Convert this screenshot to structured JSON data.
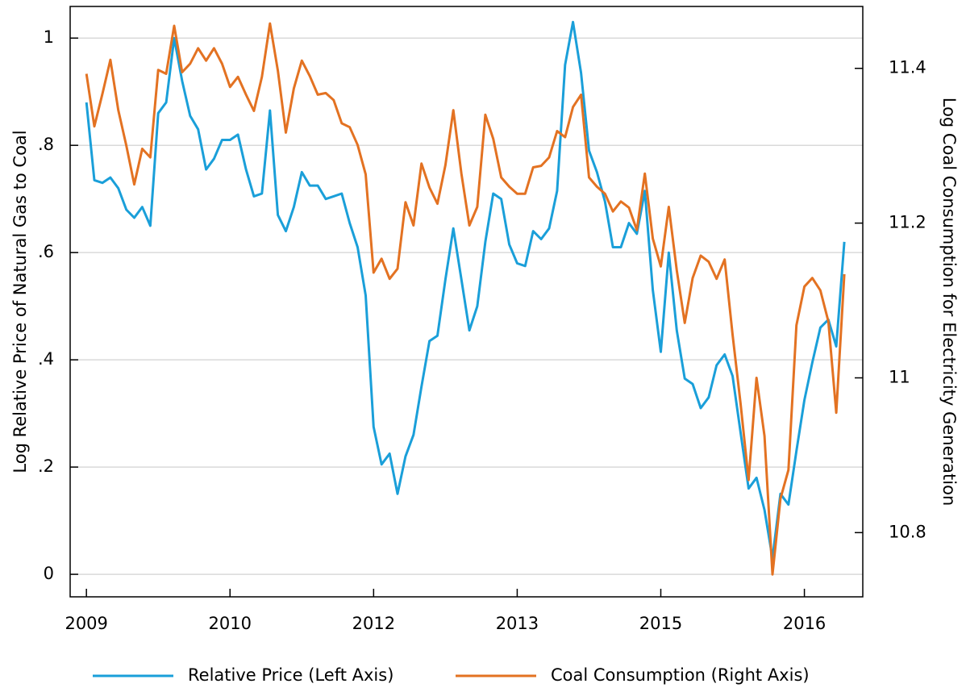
{
  "chart_data": {
    "type": "line",
    "y_label": "Log Relative Price of Natural Gas to Coal",
    "y2_label": "Log Coal Consumption for Electricity Generation",
    "x": [
      2009,
      2009.083,
      2009.167,
      2009.25,
      2009.333,
      2009.417,
      2009.5,
      2009.583,
      2009.667,
      2009.75,
      2009.833,
      2009.917,
      2010,
      2010.083,
      2010.167,
      2010.25,
      2010.333,
      2010.417,
      2010.5,
      2010.583,
      2010.667,
      2010.75,
      2010.833,
      2010.917,
      2011,
      2011.083,
      2011.167,
      2011.25,
      2011.333,
      2011.417,
      2011.5,
      2011.583,
      2011.667,
      2011.75,
      2011.833,
      2011.917,
      2012,
      2012.083,
      2012.167,
      2012.25,
      2012.333,
      2012.417,
      2012.5,
      2012.583,
      2012.667,
      2012.75,
      2012.833,
      2012.917,
      2013,
      2013.083,
      2013.167,
      2013.25,
      2013.333,
      2013.417,
      2013.5,
      2013.583,
      2013.667,
      2013.75,
      2013.833,
      2013.917,
      2014,
      2014.083,
      2014.167,
      2014.25,
      2014.333,
      2014.417,
      2014.5,
      2014.583,
      2014.667,
      2014.75,
      2014.833,
      2014.917,
      2015,
      2015.083,
      2015.167,
      2015.25,
      2015.333,
      2015.417,
      2015.5,
      2015.583,
      2015.667,
      2015.75,
      2015.833,
      2015.917,
      2016,
      2016.083,
      2016.167,
      2016.25,
      2016.333,
      2016.417,
      2016.5,
      2016.583,
      2016.667,
      2016.75,
      2016.833,
      2016.917
    ],
    "series": [
      {
        "name": "Relative Price (Left Axis)",
        "color": "#1a9fd9",
        "values": [
          0.88,
          0.735,
          0.73,
          0.74,
          0.72,
          0.68,
          0.665,
          0.685,
          0.65,
          0.86,
          0.88,
          1.0,
          0.92,
          0.855,
          0.83,
          0.755,
          0.775,
          0.81,
          0.81,
          0.82,
          0.755,
          0.705,
          0.71,
          0.865,
          0.67,
          0.64,
          0.685,
          0.75,
          0.725,
          0.725,
          0.7,
          0.705,
          0.71,
          0.655,
          0.61,
          0.52,
          0.275,
          0.205,
          0.225,
          0.15,
          0.22,
          0.26,
          0.35,
          0.435,
          0.445,
          0.55,
          0.645,
          0.55,
          0.455,
          0.5,
          0.62,
          0.71,
          0.7,
          0.615,
          0.58,
          0.575,
          0.64,
          0.625,
          0.645,
          0.715,
          0.95,
          1.03,
          0.935,
          0.79,
          0.75,
          0.695,
          0.61,
          0.61,
          0.655,
          0.635,
          0.715,
          0.53,
          0.415,
          0.6,
          0.455,
          0.365,
          0.355,
          0.31,
          0.33,
          0.39,
          0.41,
          0.37,
          0.265,
          0.16,
          0.18,
          0.12,
          0.03,
          0.15,
          0.13,
          0.23,
          0.325,
          0.395,
          0.46,
          0.475,
          0.425,
          0.62
        ]
      },
      {
        "name": "Coal Consumption (Right Axis)",
        "color": "#e37222",
        "axis": "y2",
        "values": [
          11.393,
          11.325,
          11.367,
          11.411,
          11.346,
          11.3,
          11.25,
          11.296,
          11.285,
          11.398,
          11.393,
          11.455,
          11.395,
          11.406,
          11.426,
          11.41,
          11.426,
          11.406,
          11.376,
          11.389,
          11.366,
          11.345,
          11.389,
          11.458,
          11.397,
          11.317,
          11.374,
          11.41,
          11.39,
          11.366,
          11.368,
          11.359,
          11.329,
          11.324,
          11.301,
          11.263,
          11.136,
          11.154,
          11.128,
          11.141,
          11.227,
          11.197,
          11.277,
          11.246,
          11.225,
          11.275,
          11.346,
          11.264,
          11.197,
          11.221,
          11.34,
          11.309,
          11.259,
          11.247,
          11.238,
          11.238,
          11.272,
          11.274,
          11.285,
          11.319,
          11.311,
          11.35,
          11.366,
          11.259,
          11.247,
          11.238,
          11.215,
          11.228,
          11.22,
          11.191,
          11.264,
          11.18,
          11.144,
          11.221,
          11.139,
          11.071,
          11.129,
          11.158,
          11.15,
          11.128,
          11.153,
          11.056,
          10.967,
          10.868,
          11.0,
          10.925,
          10.746,
          10.844,
          10.881,
          11.068,
          11.118,
          11.129,
          11.113,
          11.073,
          10.955,
          11.134
        ]
      }
    ],
    "xlim": [
      2008.83,
      2017.11
    ],
    "xticks": [
      2009,
      {
        "value": 2010.5,
        "label": "2010"
      },
      2012,
      {
        "value": 2013.5,
        "label": "2013"
      },
      2015,
      {
        "value": 2016.5,
        "label": "2016"
      }
    ],
    "ylim": [
      -0.042,
      1.059
    ],
    "yticks": [
      0,
      {
        "value": 0.2,
        "label": ".2"
      },
      {
        "value": 0.4,
        "label": ".4"
      },
      {
        "value": 0.6,
        "label": ".6"
      },
      {
        "value": 0.8,
        "label": ".8"
      },
      1
    ],
    "y2lim": [
      10.717,
      11.48
    ],
    "y2ticks": [
      10.8,
      11,
      11.2,
      11.4
    ],
    "grid": true,
    "legend": "bottom"
  }
}
